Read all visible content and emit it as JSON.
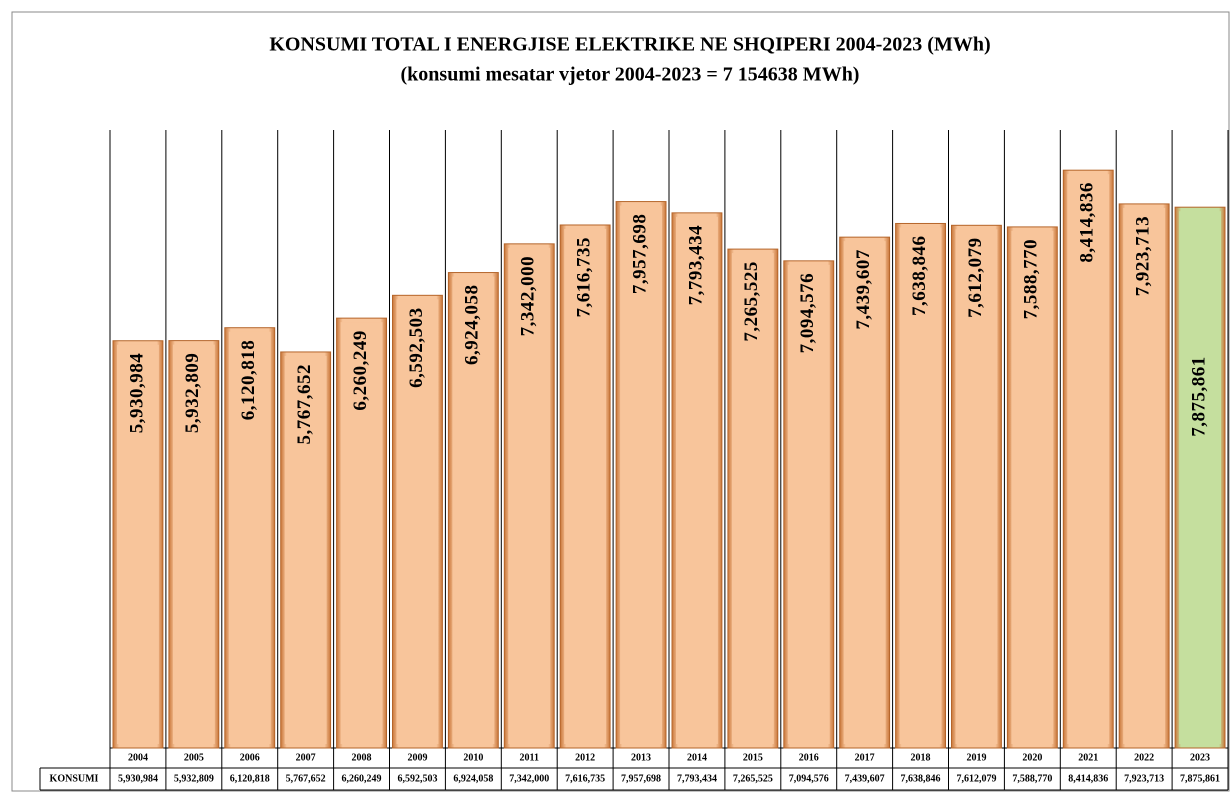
{
  "chart_data": {
    "type": "bar",
    "title": "KONSUMI TOTAL I ENERGJISE ELEKTRIKE  NE SHQIPERI  2004-2023 (MWh)",
    "subtitle": "(konsumi  mesatar vjetor 2004-2023 = 7 154638 MWh)",
    "series_name": "KONSUMI",
    "categories": [
      "2004",
      "2005",
      "2006",
      "2007",
      "2008",
      "2009",
      "2010",
      "2011",
      "2012",
      "2013",
      "2014",
      "2015",
      "2016",
      "2017",
      "2018",
      "2019",
      "2020",
      "2021",
      "2022",
      "2023"
    ],
    "values": [
      5930984,
      5932809,
      6120818,
      5767652,
      6260249,
      6592503,
      6924058,
      7342000,
      7616735,
      7957698,
      7793434,
      7265525,
      7094576,
      7439607,
      7638846,
      7612079,
      7588770,
      8414836,
      7923713,
      7875861
    ],
    "value_labels": [
      "5,930,984",
      "5,932,809",
      "6,120,818",
      "5,767,652",
      "6,260,249",
      "6,592,503",
      "6,924,058",
      "7,342,000",
      "7,616,735",
      "7,957,698",
      "7,793,434",
      "7,265,525",
      "7,094,576",
      "7,439,607",
      "7,638,846",
      "7,612,079",
      "7,588,770",
      "8,414,836",
      "7,923,713",
      "7,875,861"
    ],
    "colors": [
      "#f8c59b",
      "#f8c59b",
      "#f8c59b",
      "#f8c59b",
      "#f8c59b",
      "#f8c59b",
      "#f8c59b",
      "#f8c59b",
      "#f8c59b",
      "#f8c59b",
      "#f8c59b",
      "#f8c59b",
      "#f8c59b",
      "#f8c59b",
      "#f8c59b",
      "#f8c59b",
      "#f8c59b",
      "#f8c59b",
      "#f8c59b",
      "#c5df9e"
    ],
    "ylim": [
      0,
      9000000
    ]
  }
}
